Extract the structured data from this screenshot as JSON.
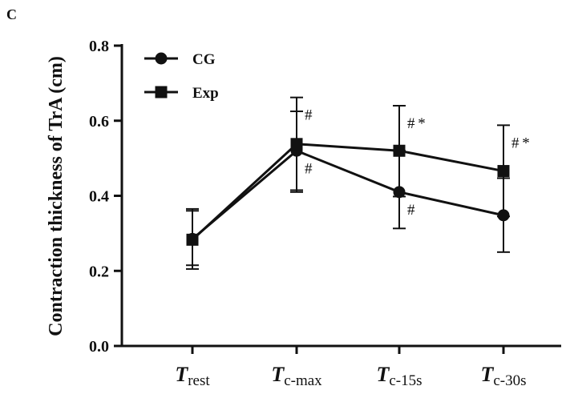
{
  "panel_label": "C",
  "chart_data": {
    "type": "line",
    "title": "",
    "xlabel": "",
    "ylabel": "Contraction thickness of TrA (cm)",
    "ylim": [
      0.0,
      0.8
    ],
    "yticks": [
      "0.0",
      "0.2",
      "0.4",
      "0.6",
      "0.8"
    ],
    "categories": [
      {
        "main": "T",
        "sub": "rest"
      },
      {
        "main": "T",
        "sub": "c-max"
      },
      {
        "main": "T",
        "sub": "c-15s"
      },
      {
        "main": "T",
        "sub": "c-30s"
      }
    ],
    "legend_position": "top-left",
    "series": [
      {
        "name": "CG",
        "marker": "circle",
        "values": [
          0.285,
          0.52,
          0.41,
          0.348
        ],
        "err_low": [
          0.205,
          0.41,
          0.313,
          0.25
        ],
        "err_high": [
          0.365,
          0.625,
          0.52,
          0.447
        ],
        "annotations": [
          "",
          "#",
          "#",
          ""
        ]
      },
      {
        "name": "Exp",
        "marker": "square",
        "values": [
          0.283,
          0.538,
          0.52,
          0.466
        ],
        "err_low": [
          0.215,
          0.415,
          0.398,
          0.345
        ],
        "err_high": [
          0.36,
          0.662,
          0.64,
          0.588
        ],
        "annotations": [
          "",
          "#",
          "# *",
          "# *"
        ]
      }
    ]
  }
}
